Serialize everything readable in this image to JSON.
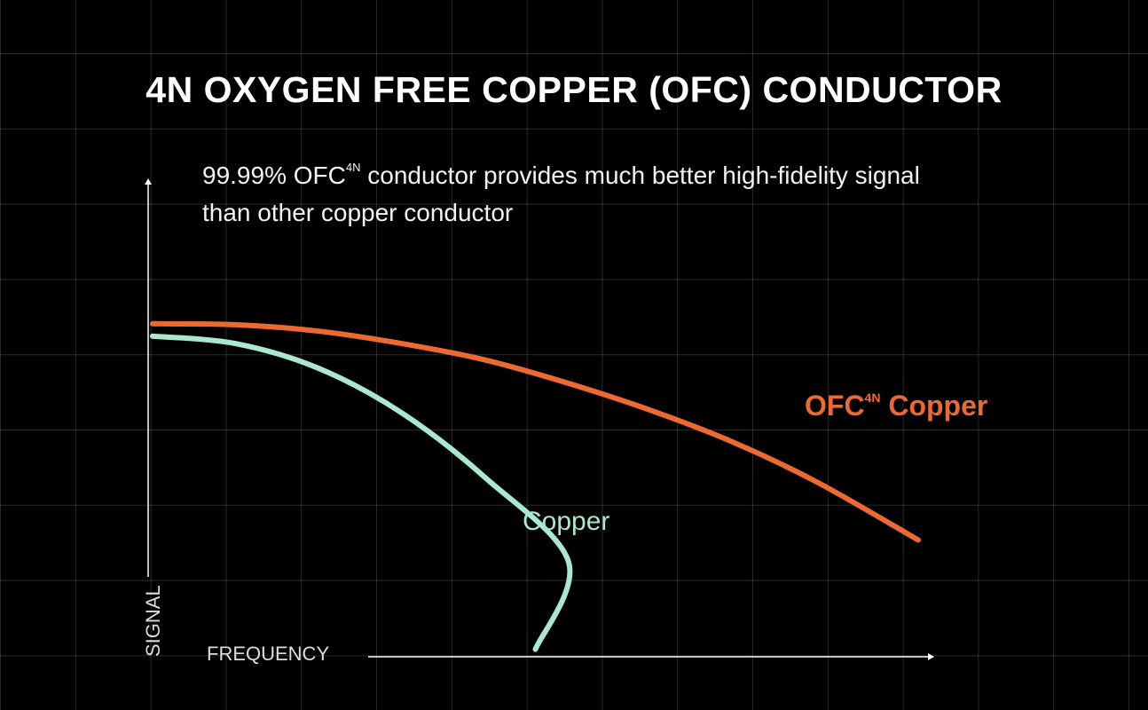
{
  "title": "4N OXYGEN FREE COPPER (OFC) CONDUCTOR",
  "subtitle": {
    "line1_before": "99.99% OFC",
    "line1_sup": "4N",
    "line1_after": " conductor provides much better high-fidelity signal",
    "line2": "than other copper conductor"
  },
  "colors": {
    "background": "#000000",
    "ofc": "#ec6a31",
    "copper": "#a9e8cf",
    "axis": "#ffffff"
  },
  "chart_data": {
    "type": "line",
    "xlabel": "FREQUENCY",
    "ylabel": "SIGNAL",
    "xlim": [
      0,
      10
    ],
    "ylim": [
      0,
      10
    ],
    "grid": true,
    "legend": "inline-labels",
    "series": [
      {
        "key": "ofc",
        "name": "OFC",
        "name_sup": "4N",
        "name_after": " Copper",
        "x": [
          0,
          1,
          2,
          3,
          4,
          5,
          6,
          7,
          8,
          9.2
        ],
        "y": [
          6.7,
          6.68,
          6.55,
          6.3,
          5.97,
          5.5,
          4.95,
          4.3,
          3.5,
          2.35
        ]
      },
      {
        "key": "copper",
        "name": "Copper",
        "x": [
          0,
          1,
          2,
          3,
          4,
          5,
          4.6
        ],
        "y": [
          6.45,
          6.3,
          5.8,
          4.9,
          3.6,
          1.9,
          0.15
        ]
      }
    ]
  }
}
